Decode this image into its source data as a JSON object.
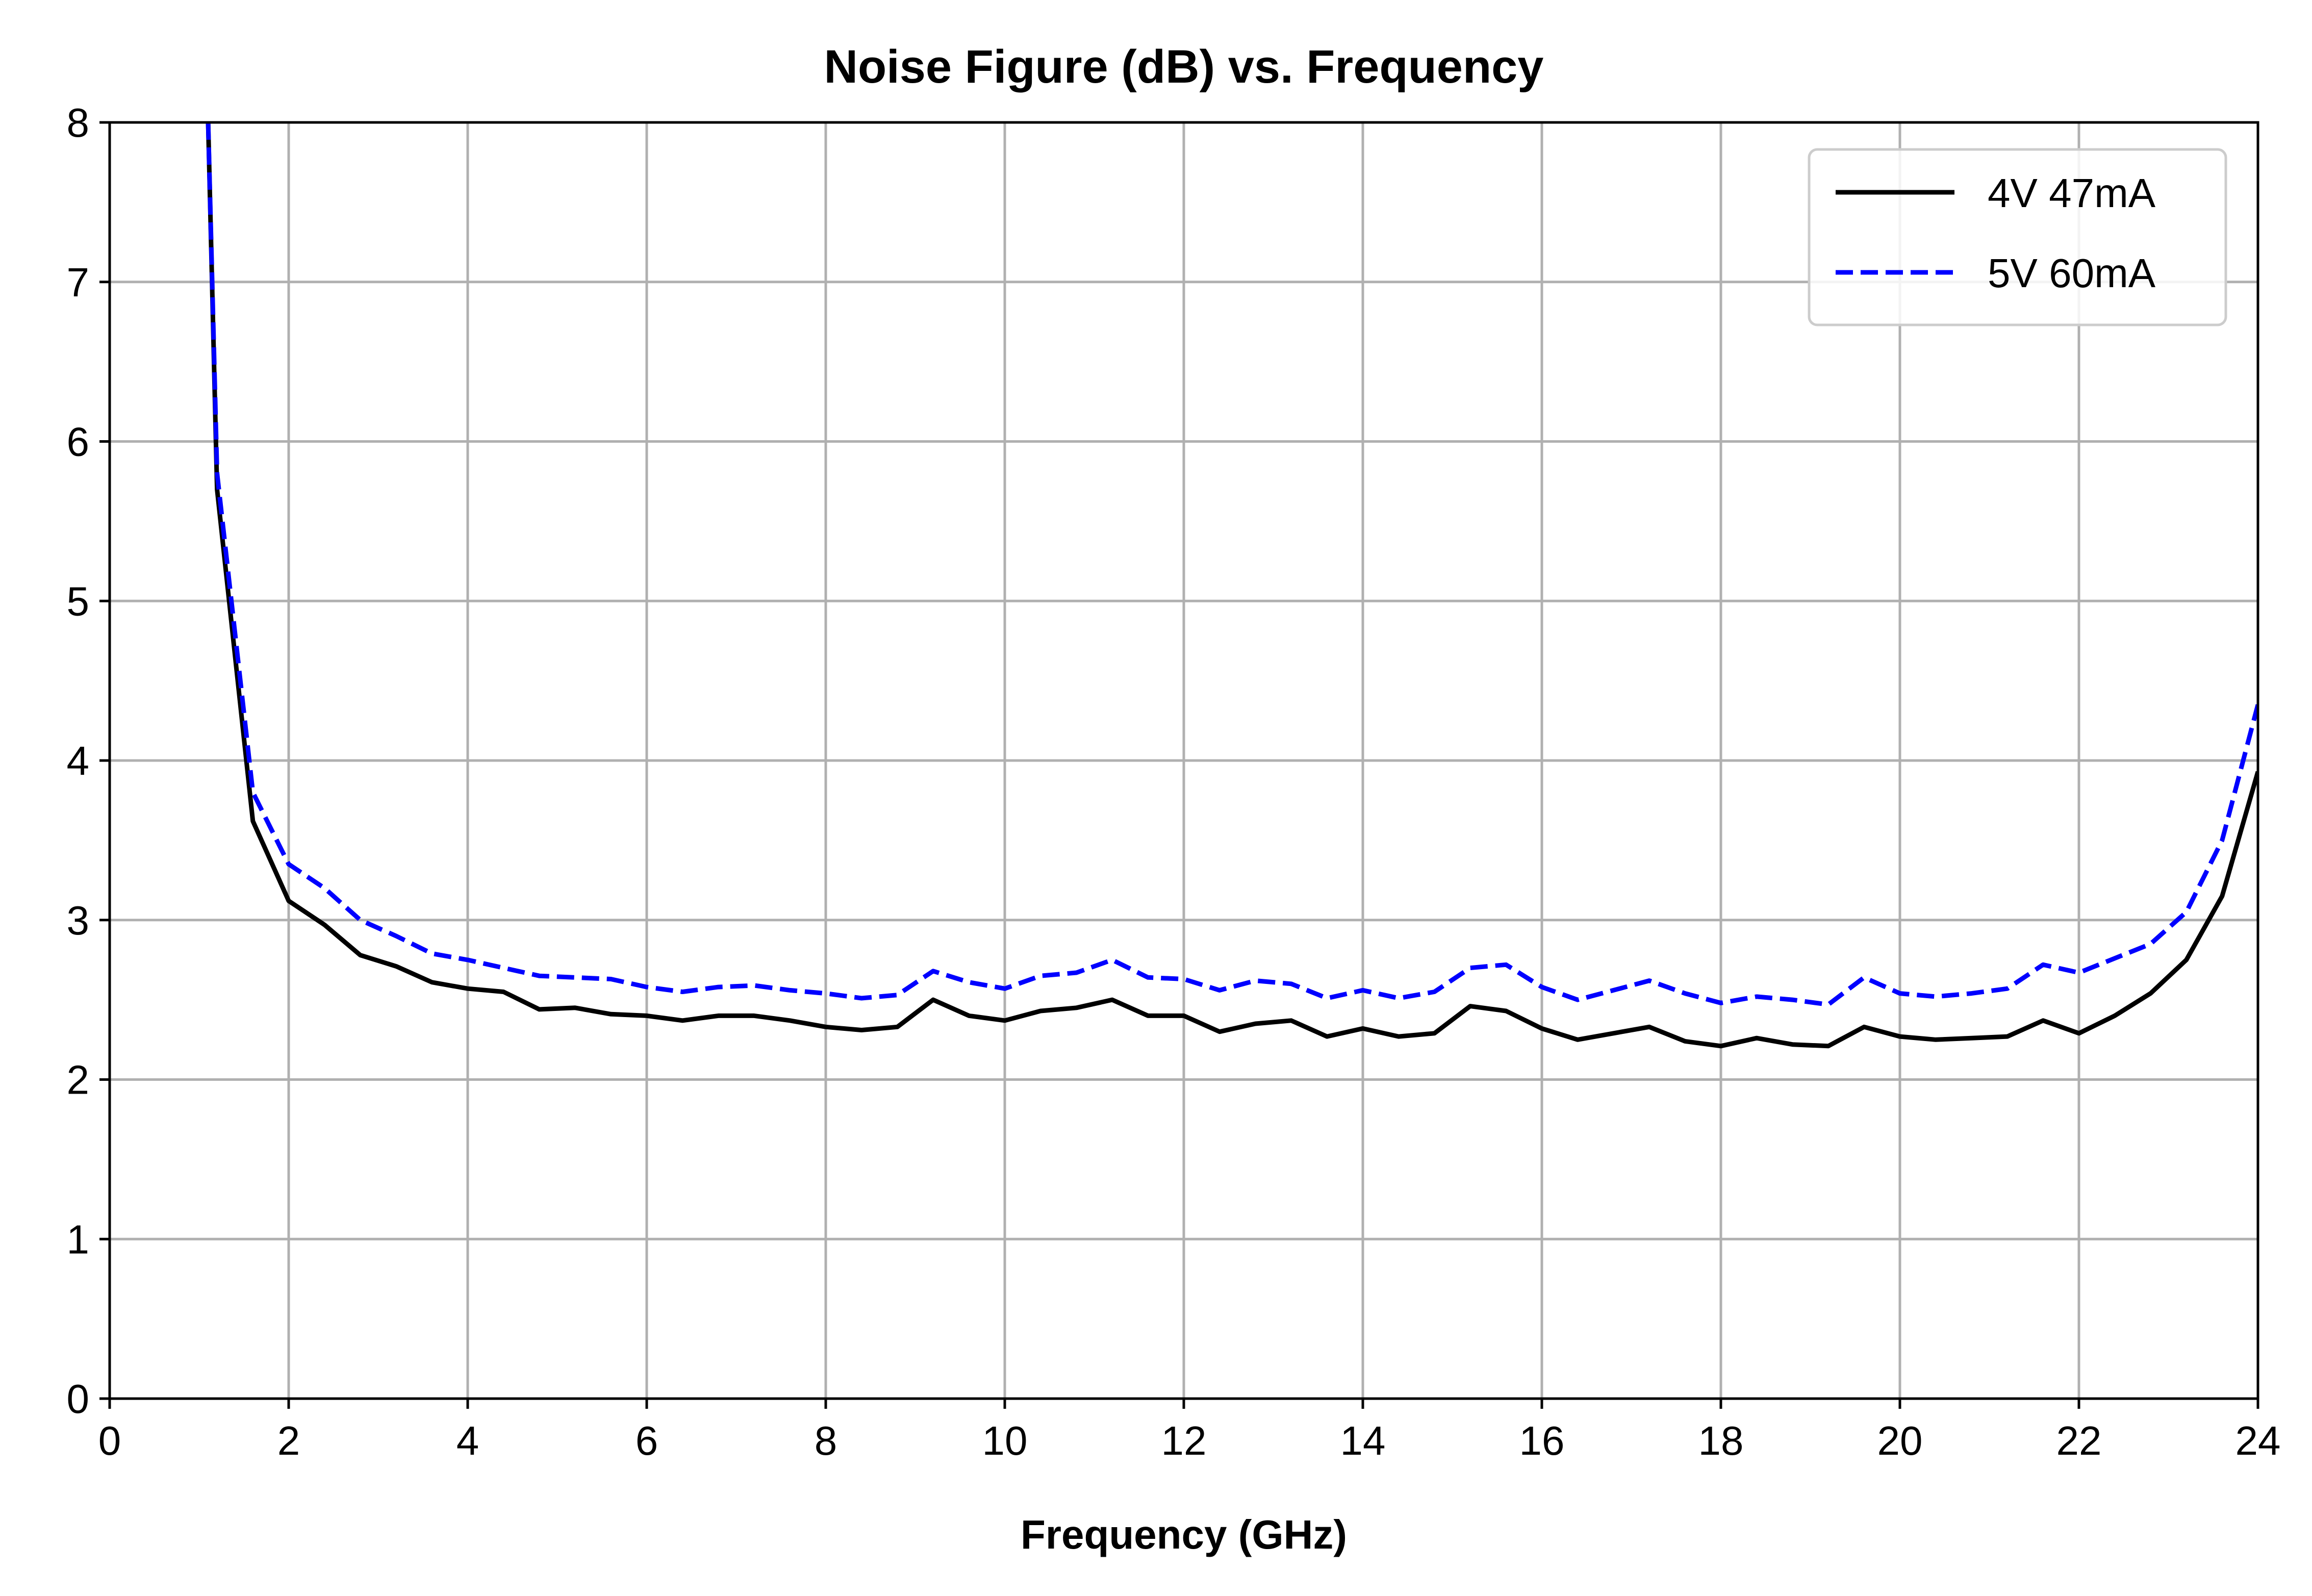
{
  "chart_data": {
    "type": "line",
    "title": "Noise Figure (dB) vs. Frequency",
    "xlabel": "Frequency (GHz)",
    "ylabel": "",
    "xlim": [
      0,
      24
    ],
    "ylim": [
      0,
      8
    ],
    "xticks": [
      "0",
      "2",
      "4",
      "6",
      "8",
      "10",
      "12",
      "14",
      "16",
      "18",
      "20",
      "22",
      "24"
    ],
    "yticks": [
      "0",
      "1",
      "2",
      "3",
      "4",
      "5",
      "6",
      "7",
      "8"
    ],
    "grid": true,
    "legend_position": "top-right",
    "x": [
      1.1,
      1.2,
      1.6,
      2.0,
      2.4,
      2.8,
      3.2,
      3.6,
      4.0,
      4.4,
      4.8,
      5.2,
      5.6,
      6.0,
      6.4,
      6.8,
      7.2,
      7.6,
      8.0,
      8.4,
      8.8,
      9.2,
      9.6,
      10.0,
      10.4,
      10.8,
      11.2,
      11.6,
      12.0,
      12.4,
      12.8,
      13.2,
      13.6,
      14.0,
      14.4,
      14.8,
      15.2,
      15.6,
      16.0,
      16.4,
      16.8,
      17.2,
      17.6,
      18.0,
      18.4,
      18.8,
      19.2,
      19.6,
      20.0,
      20.4,
      20.8,
      21.2,
      21.6,
      22.0,
      22.4,
      22.8,
      23.2,
      23.6,
      24.0
    ],
    "series": [
      {
        "name": "4V 47mA",
        "color": "#000000",
        "dash": "solid",
        "values": [
          8.0,
          5.7,
          3.62,
          3.12,
          2.97,
          2.78,
          2.71,
          2.61,
          2.57,
          2.55,
          2.44,
          2.45,
          2.41,
          2.4,
          2.37,
          2.4,
          2.4,
          2.37,
          2.33,
          2.31,
          2.33,
          2.5,
          2.4,
          2.37,
          2.43,
          2.45,
          2.5,
          2.4,
          2.4,
          2.3,
          2.35,
          2.37,
          2.27,
          2.32,
          2.27,
          2.29,
          2.46,
          2.43,
          2.32,
          2.25,
          2.29,
          2.33,
          2.24,
          2.21,
          2.26,
          2.22,
          2.21,
          2.33,
          2.27,
          2.25,
          2.26,
          2.27,
          2.37,
          2.29,
          2.4,
          2.54,
          2.75,
          3.15,
          3.93
        ]
      },
      {
        "name": "5V 60mA",
        "color": "#0000ff",
        "dash": "dashed",
        "values": [
          8.0,
          5.8,
          3.8,
          3.35,
          3.2,
          3.0,
          2.9,
          2.79,
          2.75,
          2.7,
          2.65,
          2.64,
          2.63,
          2.58,
          2.55,
          2.58,
          2.59,
          2.56,
          2.54,
          2.51,
          2.53,
          2.68,
          2.61,
          2.57,
          2.65,
          2.67,
          2.75,
          2.64,
          2.63,
          2.56,
          2.62,
          2.6,
          2.51,
          2.56,
          2.51,
          2.55,
          2.7,
          2.72,
          2.58,
          2.5,
          2.56,
          2.62,
          2.54,
          2.48,
          2.52,
          2.5,
          2.47,
          2.64,
          2.54,
          2.52,
          2.54,
          2.57,
          2.72,
          2.67,
          2.76,
          2.85,
          3.05,
          3.5,
          4.35
        ]
      }
    ]
  }
}
